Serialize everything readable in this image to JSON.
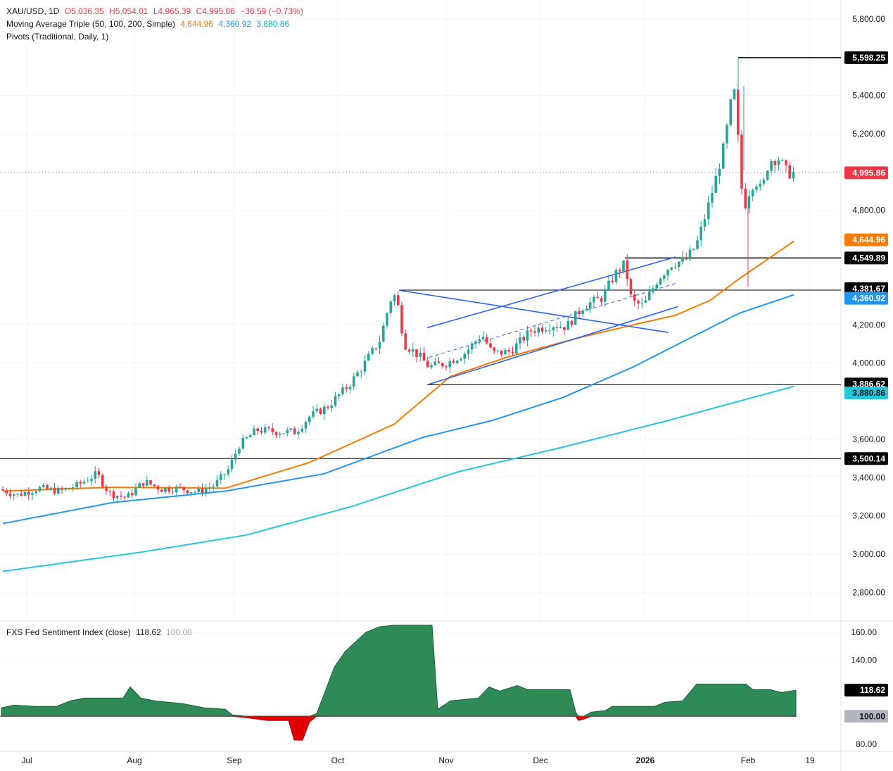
{
  "legend": {
    "symbol": "XAU/USD, 1D",
    "open": "O5,036.35",
    "high": "H5,054.01",
    "low": "L4,965.39",
    "close": "C4,995.86",
    "change": "−36.59 (−0.73%)",
    "ma_title": "Moving Average Triple (50, 100, 200, Simple)",
    "ma50": "4,644.96",
    "ma100": "4,360.92",
    "ma200": "3,880.86",
    "pivots_title": "Pivots (Traditional, Daily, 1)",
    "indicator_title": "FXS Fed Sentiment Index (close)",
    "indicator_value": "118.62",
    "indicator_base": "100.00"
  },
  "colors": {
    "up": "#26a69a",
    "down": "#f23645",
    "ma50": "#f57c00",
    "ma100": "#2196f3",
    "ma200": "#26c6da",
    "trendline": "#2962ff",
    "sentiment_fill": "#2e8b57",
    "sentiment_neg": "#e00000"
  },
  "chart_data": [
    {
      "type": "candlestick",
      "symbol": "XAU/USD",
      "timeframe": "1D",
      "ylim": [
        2650,
        5900
      ],
      "y_ticks": [
        2800,
        3000,
        3200,
        3400,
        3600,
        4000,
        4200,
        4800,
        5200,
        5400,
        5800
      ],
      "y_tick_labels": [
        "2,800.00",
        "3,000.00",
        "3,200.00",
        "3,400.00",
        "3,600.00",
        "4,000.00",
        "4,200.00",
        "4,800.00",
        "5,200.00",
        "5,400.00",
        "5,800.00"
      ],
      "x_tick_labels": [
        "Jul",
        "Aug",
        "Sep",
        "Oct",
        "Nov",
        "Dec",
        "2026",
        "Feb",
        "19"
      ],
      "last_price": 4995.86,
      "last_price_label": "4,995.86",
      "price_labels": [
        {
          "value": 5598.25,
          "label": "5,598.25",
          "style": "pivot"
        },
        {
          "value": 4644.96,
          "label": "4,644.96",
          "style": "ma50"
        },
        {
          "value": 4549.89,
          "label": "4,549.89",
          "style": "pivot"
        },
        {
          "value": 4381.67,
          "label": "4,381.67",
          "style": "pivot"
        },
        {
          "value": 4360.92,
          "label": "4,360.92",
          "style": "ma100"
        },
        {
          "value": 3886.62,
          "label": "3,886.62",
          "style": "pivot"
        },
        {
          "value": 3880.86,
          "label": "3,880.86",
          "style": "ma200"
        },
        {
          "value": 3500.14,
          "label": "3,500.14",
          "style": "pivot"
        }
      ],
      "horizontal_levels": [
        {
          "value": 5598.25,
          "from": 1049
        },
        {
          "value": 4549.89,
          "from": 888
        },
        {
          "value": 4381.67,
          "from": 567
        },
        {
          "value": 3886.62,
          "from": 607
        },
        {
          "value": 3500.14,
          "from": 0
        }
      ],
      "anchors": [
        [
          4,
          3340
        ],
        [
          30,
          3310
        ],
        [
          60,
          3345
        ],
        [
          90,
          3330
        ],
        [
          115,
          3360
        ],
        [
          143,
          3420
        ],
        [
          160,
          3320
        ],
        [
          185,
          3295
        ],
        [
          210,
          3380
        ],
        [
          235,
          3340
        ],
        [
          260,
          3345
        ],
        [
          285,
          3325
        ],
        [
          310,
          3360
        ],
        [
          330,
          3445
        ],
        [
          345,
          3570
        ],
        [
          370,
          3650
        ],
        [
          400,
          3640
        ],
        [
          425,
          3640
        ],
        [
          445,
          3720
        ],
        [
          470,
          3770
        ],
        [
          500,
          3880
        ],
        [
          520,
          3980
        ],
        [
          545,
          4120
        ],
        [
          560,
          4330
        ],
        [
          568,
          4360
        ],
        [
          580,
          4100
        ],
        [
          600,
          4040
        ],
        [
          615,
          3980
        ],
        [
          640,
          4000
        ],
        [
          665,
          4050
        ],
        [
          690,
          4150
        ],
        [
          705,
          4050
        ],
        [
          730,
          4060
        ],
        [
          760,
          4170
        ],
        [
          790,
          4200
        ],
        [
          810,
          4190
        ],
        [
          835,
          4300
        ],
        [
          860,
          4340
        ],
        [
          880,
          4470
        ],
        [
          893,
          4520
        ],
        [
          903,
          4320
        ],
        [
          920,
          4300
        ],
        [
          940,
          4440
        ],
        [
          960,
          4520
        ],
        [
          980,
          4540
        ],
        [
          995,
          4620
        ],
        [
          1010,
          4800
        ],
        [
          1025,
          5000
        ],
        [
          1035,
          5150
        ],
        [
          1045,
          5390
        ],
        [
          1050,
          5420
        ],
        [
          1056,
          5050
        ],
        [
          1062,
          4800
        ],
        [
          1068,
          4880
        ],
        [
          1078,
          4960
        ],
        [
          1088,
          4900
        ],
        [
          1098,
          5060
        ],
        [
          1112,
          5070
        ],
        [
          1125,
          4990
        ],
        [
          1131,
          4996
        ]
      ],
      "ma50": [
        [
          4,
          3330
        ],
        [
          160,
          3350
        ],
        [
          320,
          3345
        ],
        [
          440,
          3480
        ],
        [
          560,
          3680
        ],
        [
          640,
          3930
        ],
        [
          720,
          4030
        ],
        [
          820,
          4130
        ],
        [
          900,
          4200
        ],
        [
          960,
          4250
        ],
        [
          1010,
          4330
        ],
        [
          1050,
          4440
        ],
        [
          1131,
          4645
        ]
      ],
      "ma100": [
        [
          4,
          3160
        ],
        [
          160,
          3270
        ],
        [
          320,
          3330
        ],
        [
          460,
          3420
        ],
        [
          600,
          3610
        ],
        [
          700,
          3700
        ],
        [
          800,
          3820
        ],
        [
          900,
          3980
        ],
        [
          980,
          4130
        ],
        [
          1050,
          4260
        ],
        [
          1131,
          4361
        ]
      ],
      "ma200": [
        [
          4,
          2910
        ],
        [
          200,
          3010
        ],
        [
          350,
          3100
        ],
        [
          500,
          3250
        ],
        [
          650,
          3430
        ],
        [
          800,
          3560
        ],
        [
          950,
          3700
        ],
        [
          1050,
          3800
        ],
        [
          1131,
          3881
        ]
      ],
      "trendlines": [
        {
          "from": [
            567,
            4381
          ],
          "to": [
            950,
            4160
          ],
          "style": "solid"
        },
        {
          "from": [
            607,
            4185
          ],
          "to": [
            960,
            4555
          ],
          "style": "solid"
        },
        {
          "from": [
            607,
            3886
          ],
          "to": [
            963,
            4295
          ],
          "style": "solid"
        },
        {
          "from": [
            610,
            4030
          ],
          "to": [
            963,
            4420
          ],
          "style": "dashed"
        }
      ]
    },
    {
      "type": "area",
      "title": "FXS Fed Sentiment Index (close)",
      "baseline": 100,
      "last_value": 118.62,
      "ylim": [
        75,
        168
      ],
      "y_ticks": [
        80,
        140,
        160
      ],
      "y_tick_labels": [
        "80.00",
        "140.00",
        "160.00"
      ],
      "value_labels": [
        {
          "value": 118.62,
          "label": "118.62",
          "style": "dark"
        },
        {
          "value": 100.0,
          "label": "100.00",
          "style": "grey"
        }
      ],
      "points": [
        [
          2,
          106
        ],
        [
          20,
          108
        ],
        [
          50,
          107
        ],
        [
          80,
          107
        ],
        [
          100,
          111
        ],
        [
          120,
          113
        ],
        [
          175,
          113
        ],
        [
          185,
          121
        ],
        [
          200,
          113
        ],
        [
          220,
          111
        ],
        [
          260,
          109
        ],
        [
          290,
          106
        ],
        [
          320,
          105
        ],
        [
          330,
          101
        ],
        [
          350,
          99
        ],
        [
          380,
          97
        ],
        [
          410,
          97
        ],
        [
          418,
          83
        ],
        [
          430,
          83
        ],
        [
          440,
          96
        ],
        [
          450,
          102
        ],
        [
          460,
          115
        ],
        [
          475,
          135
        ],
        [
          490,
          146
        ],
        [
          505,
          153
        ],
        [
          520,
          160
        ],
        [
          540,
          164
        ],
        [
          560,
          165
        ],
        [
          614,
          165
        ],
        [
          622,
          105
        ],
        [
          640,
          111
        ],
        [
          660,
          112
        ],
        [
          680,
          113
        ],
        [
          695,
          121
        ],
        [
          710,
          118
        ],
        [
          735,
          122
        ],
        [
          750,
          119
        ],
        [
          810,
          119
        ],
        [
          818,
          103
        ],
        [
          822,
          97
        ],
        [
          830,
          98
        ],
        [
          840,
          103
        ],
        [
          860,
          104
        ],
        [
          870,
          107
        ],
        [
          930,
          107
        ],
        [
          945,
          110
        ],
        [
          970,
          111
        ],
        [
          990,
          123
        ],
        [
          1060,
          123
        ],
        [
          1070,
          119
        ],
        [
          1095,
          119
        ],
        [
          1110,
          117
        ],
        [
          1131,
          118.6
        ]
      ]
    }
  ]
}
